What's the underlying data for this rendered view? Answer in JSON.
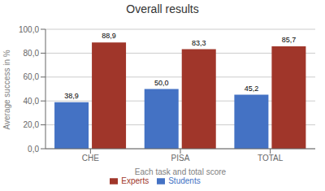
{
  "chart_data": {
    "type": "bar",
    "title": "Overall results",
    "xlabel": "Each task and total score",
    "ylabel": "Average success in %",
    "categories": [
      "CHE",
      "PISA",
      "TOTAL"
    ],
    "series": [
      {
        "name": "Students",
        "color": "#4472C4",
        "values": [
          38.9,
          50.0,
          45.2
        ],
        "value_labels": [
          "38,9",
          "50,0",
          "45,2"
        ]
      },
      {
        "name": "Experts",
        "color": "#A0362A",
        "values": [
          88.9,
          83.3,
          85.7
        ],
        "value_labels": [
          "88,9",
          "83,3",
          "85,7"
        ]
      }
    ],
    "ylim": [
      0,
      100
    ],
    "yticks": [
      {
        "value": 0,
        "label": "0,0"
      },
      {
        "value": 20,
        "label": "20,0"
      },
      {
        "value": 40,
        "label": "40,0"
      },
      {
        "value": 60,
        "label": "60,0"
      },
      {
        "value": 80,
        "label": "80,0"
      },
      {
        "value": 100,
        "label": "100,0"
      }
    ],
    "grid": true,
    "data_labels": true,
    "legend": "bottom"
  }
}
